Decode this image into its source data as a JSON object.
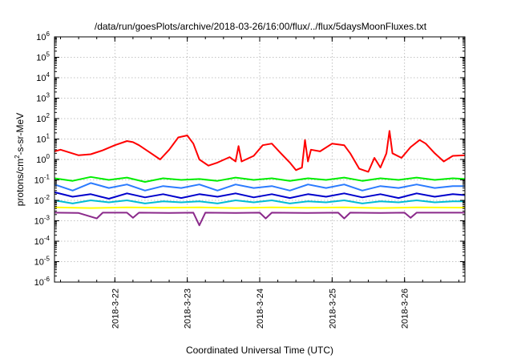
{
  "chart_data": {
    "type": "line",
    "title": "/data/run/goesPlots/archive/2018-03-26/16:00/flux/../flux/5daysMoonFluxes.txt",
    "xlabel": "Coordinated Universal Time (UTC)",
    "ylabel": {
      "prefix": "protons/cm",
      "sup": "2",
      "suffix": "-s-sr-MeV"
    },
    "x_range": [
      "2018-03-21T04:00",
      "2018-03-26T20:00"
    ],
    "x_ticks": [
      "2018-3-22",
      "2018-3-23",
      "2018-3-24",
      "2018-3-25",
      "2018-3-26"
    ],
    "y_scale": "log",
    "ylim": [
      1e-06,
      1000000.0
    ],
    "y_ticks": [
      {
        "base": "10",
        "exp": "-6"
      },
      {
        "base": "10",
        "exp": "-5"
      },
      {
        "base": "10",
        "exp": "-4"
      },
      {
        "base": "10",
        "exp": "-3"
      },
      {
        "base": "10",
        "exp": "-2"
      },
      {
        "base": "10",
        "exp": "-1"
      },
      {
        "base": "10",
        "exp": "0"
      },
      {
        "base": "10",
        "exp": "1"
      },
      {
        "base": "10",
        "exp": "2"
      },
      {
        "base": "10",
        "exp": "3"
      },
      {
        "base": "10",
        "exp": "4"
      },
      {
        "base": "10",
        "exp": "5"
      },
      {
        "base": "10",
        "exp": "6"
      }
    ],
    "grid": true,
    "legend": "none",
    "series": [
      {
        "color": "#ff0000",
        "values": [
          [
            "2018-03-21T04:00",
            2.5
          ],
          [
            "2018-03-21T06:00",
            3.0
          ],
          [
            "2018-03-21T09:00",
            2.2
          ],
          [
            "2018-03-21T12:00",
            1.6
          ],
          [
            "2018-03-21T16:00",
            1.8
          ],
          [
            "2018-03-21T20:00",
            2.8
          ],
          [
            "2018-03-22T00:00",
            5.0
          ],
          [
            "2018-03-22T04:00",
            8.0
          ],
          [
            "2018-03-22T06:00",
            7.0
          ],
          [
            "2018-03-22T08:00",
            5.0
          ],
          [
            "2018-03-22T12:00",
            2.0
          ],
          [
            "2018-03-22T15:00",
            1.0
          ],
          [
            "2018-03-22T18:00",
            3.0
          ],
          [
            "2018-03-22T21:00",
            12.0
          ],
          [
            "2018-03-23T00:00",
            15.0
          ],
          [
            "2018-03-23T02:00",
            6.0
          ],
          [
            "2018-03-23T04:00",
            1.0
          ],
          [
            "2018-03-23T07:00",
            0.5
          ],
          [
            "2018-03-23T10:00",
            0.7
          ],
          [
            "2018-03-23T14:00",
            1.3
          ],
          [
            "2018-03-23T16:00",
            0.8
          ],
          [
            "2018-03-23T17:00",
            4.5
          ],
          [
            "2018-03-23T18:00",
            0.8
          ],
          [
            "2018-03-23T22:00",
            1.5
          ],
          [
            "2018-03-24T01:00",
            5.0
          ],
          [
            "2018-03-24T04:00",
            6.0
          ],
          [
            "2018-03-24T07:00",
            2.0
          ],
          [
            "2018-03-24T10:00",
            0.7
          ],
          [
            "2018-03-24T12:00",
            0.3
          ],
          [
            "2018-03-24T14:00",
            0.4
          ],
          [
            "2018-03-24T15:00",
            9.0
          ],
          [
            "2018-03-24T16:00",
            0.8
          ],
          [
            "2018-03-24T17:00",
            3.0
          ],
          [
            "2018-03-24T20:00",
            2.5
          ],
          [
            "2018-03-25T00:00",
            6.0
          ],
          [
            "2018-03-25T04:00",
            5.0
          ],
          [
            "2018-03-25T06:00",
            2.0
          ],
          [
            "2018-03-25T09:00",
            0.35
          ],
          [
            "2018-03-25T12:00",
            0.25
          ],
          [
            "2018-03-25T14:00",
            1.2
          ],
          [
            "2018-03-25T16:00",
            0.4
          ],
          [
            "2018-03-25T18:00",
            2.0
          ],
          [
            "2018-03-25T19:00",
            25.0
          ],
          [
            "2018-03-25T20:00",
            2.0
          ],
          [
            "2018-03-25T23:00",
            1.2
          ],
          [
            "2018-03-26T02:00",
            4.0
          ],
          [
            "2018-03-26T05:00",
            9.0
          ],
          [
            "2018-03-26T07:00",
            6.0
          ],
          [
            "2018-03-26T10:00",
            2.0
          ],
          [
            "2018-03-26T13:00",
            0.8
          ],
          [
            "2018-03-26T16:00",
            1.5
          ],
          [
            "2018-03-26T20:00",
            1.6
          ]
        ]
      },
      {
        "color": "#00ee00",
        "values": [
          [
            "2018-03-21T04:00",
            0.12
          ],
          [
            "2018-03-21T10:00",
            0.09
          ],
          [
            "2018-03-21T16:00",
            0.14
          ],
          [
            "2018-03-21T22:00",
            0.1
          ],
          [
            "2018-03-22T04:00",
            0.13
          ],
          [
            "2018-03-22T10:00",
            0.08
          ],
          [
            "2018-03-22T16:00",
            0.12
          ],
          [
            "2018-03-22T22:00",
            0.1
          ],
          [
            "2018-03-23T04:00",
            0.11
          ],
          [
            "2018-03-23T10:00",
            0.09
          ],
          [
            "2018-03-23T16:00",
            0.13
          ],
          [
            "2018-03-23T22:00",
            0.1
          ],
          [
            "2018-03-24T04:00",
            0.12
          ],
          [
            "2018-03-24T10:00",
            0.09
          ],
          [
            "2018-03-24T16:00",
            0.12
          ],
          [
            "2018-03-24T22:00",
            0.1
          ],
          [
            "2018-03-25T04:00",
            0.13
          ],
          [
            "2018-03-25T10:00",
            0.09
          ],
          [
            "2018-03-25T16:00",
            0.12
          ],
          [
            "2018-03-25T22:00",
            0.1
          ],
          [
            "2018-03-26T04:00",
            0.13
          ],
          [
            "2018-03-26T10:00",
            0.1
          ],
          [
            "2018-03-26T16:00",
            0.12
          ],
          [
            "2018-03-26T20:00",
            0.11
          ]
        ]
      },
      {
        "color": "#2b7bff",
        "values": [
          [
            "2018-03-21T04:00",
            0.06
          ],
          [
            "2018-03-21T10:00",
            0.03
          ],
          [
            "2018-03-21T16:00",
            0.07
          ],
          [
            "2018-03-21T22:00",
            0.04
          ],
          [
            "2018-03-22T04:00",
            0.06
          ],
          [
            "2018-03-22T10:00",
            0.03
          ],
          [
            "2018-03-22T16:00",
            0.05
          ],
          [
            "2018-03-22T22:00",
            0.04
          ],
          [
            "2018-03-23T04:00",
            0.06
          ],
          [
            "2018-03-23T10:00",
            0.03
          ],
          [
            "2018-03-23T16:00",
            0.06
          ],
          [
            "2018-03-23T22:00",
            0.04
          ],
          [
            "2018-03-24T04:00",
            0.05
          ],
          [
            "2018-03-24T10:00",
            0.03
          ],
          [
            "2018-03-24T16:00",
            0.06
          ],
          [
            "2018-03-24T22:00",
            0.04
          ],
          [
            "2018-03-25T04:00",
            0.06
          ],
          [
            "2018-03-25T10:00",
            0.03
          ],
          [
            "2018-03-25T16:00",
            0.05
          ],
          [
            "2018-03-25T22:00",
            0.04
          ],
          [
            "2018-03-26T04:00",
            0.06
          ],
          [
            "2018-03-26T10:00",
            0.04
          ],
          [
            "2018-03-26T16:00",
            0.05
          ],
          [
            "2018-03-26T20:00",
            0.05
          ]
        ]
      },
      {
        "color": "#0000cc",
        "values": [
          [
            "2018-03-21T04:00",
            0.025
          ],
          [
            "2018-03-21T10:00",
            0.015
          ],
          [
            "2018-03-21T16:00",
            0.02
          ],
          [
            "2018-03-21T22:00",
            0.012
          ],
          [
            "2018-03-22T04:00",
            0.022
          ],
          [
            "2018-03-22T10:00",
            0.014
          ],
          [
            "2018-03-22T16:00",
            0.02
          ],
          [
            "2018-03-22T22:00",
            0.013
          ],
          [
            "2018-03-23T04:00",
            0.02
          ],
          [
            "2018-03-23T10:00",
            0.015
          ],
          [
            "2018-03-23T16:00",
            0.022
          ],
          [
            "2018-03-23T22:00",
            0.014
          ],
          [
            "2018-03-24T04:00",
            0.02
          ],
          [
            "2018-03-24T10:00",
            0.013
          ],
          [
            "2018-03-24T16:00",
            0.02
          ],
          [
            "2018-03-24T22:00",
            0.015
          ],
          [
            "2018-03-25T04:00",
            0.022
          ],
          [
            "2018-03-25T10:00",
            0.014
          ],
          [
            "2018-03-25T16:00",
            0.02
          ],
          [
            "2018-03-25T22:00",
            0.013
          ],
          [
            "2018-03-26T04:00",
            0.022
          ],
          [
            "2018-03-26T10:00",
            0.015
          ],
          [
            "2018-03-26T16:00",
            0.02
          ],
          [
            "2018-03-26T20:00",
            0.018
          ]
        ]
      },
      {
        "color": "#00bcd4",
        "values": [
          [
            "2018-03-21T04:00",
            0.01
          ],
          [
            "2018-03-21T10:00",
            0.007
          ],
          [
            "2018-03-21T16:00",
            0.01
          ],
          [
            "2018-03-21T22:00",
            0.008
          ],
          [
            "2018-03-22T04:00",
            0.01
          ],
          [
            "2018-03-22T10:00",
            0.007
          ],
          [
            "2018-03-22T16:00",
            0.009
          ],
          [
            "2018-03-22T22:00",
            0.008
          ],
          [
            "2018-03-23T04:00",
            0.009
          ],
          [
            "2018-03-23T10:00",
            0.007
          ],
          [
            "2018-03-23T16:00",
            0.01
          ],
          [
            "2018-03-23T22:00",
            0.008
          ],
          [
            "2018-03-24T04:00",
            0.01
          ],
          [
            "2018-03-24T10:00",
            0.007
          ],
          [
            "2018-03-24T16:00",
            0.009
          ],
          [
            "2018-03-24T22:00",
            0.008
          ],
          [
            "2018-03-25T04:00",
            0.01
          ],
          [
            "2018-03-25T10:00",
            0.007
          ],
          [
            "2018-03-25T16:00",
            0.009
          ],
          [
            "2018-03-25T22:00",
            0.008
          ],
          [
            "2018-03-26T04:00",
            0.01
          ],
          [
            "2018-03-26T10:00",
            0.008
          ],
          [
            "2018-03-26T16:00",
            0.009
          ],
          [
            "2018-03-26T20:00",
            0.009
          ]
        ]
      },
      {
        "color": "#ffff00",
        "values": [
          [
            "2018-03-21T04:00",
            0.0045
          ],
          [
            "2018-03-21T16:00",
            0.0042
          ],
          [
            "2018-03-22T04:00",
            0.0045
          ],
          [
            "2018-03-22T16:00",
            0.0043
          ],
          [
            "2018-03-23T04:00",
            0.0045
          ],
          [
            "2018-03-23T16:00",
            0.0042
          ],
          [
            "2018-03-24T04:00",
            0.0045
          ],
          [
            "2018-03-24T16:00",
            0.0043
          ],
          [
            "2018-03-25T04:00",
            0.0045
          ],
          [
            "2018-03-25T16:00",
            0.0042
          ],
          [
            "2018-03-26T04:00",
            0.0045
          ],
          [
            "2018-03-26T20:00",
            0.0044
          ]
        ]
      },
      {
        "color": "#8b2a8b",
        "values": [
          [
            "2018-03-21T04:00",
            0.0025
          ],
          [
            "2018-03-21T12:00",
            0.0024
          ],
          [
            "2018-03-21T18:00",
            0.0013
          ],
          [
            "2018-03-21T20:00",
            0.0025
          ],
          [
            "2018-03-22T04:00",
            0.0025
          ],
          [
            "2018-03-22T06:00",
            0.0014
          ],
          [
            "2018-03-22T08:00",
            0.0025
          ],
          [
            "2018-03-22T18:00",
            0.0024
          ],
          [
            "2018-03-23T02:00",
            0.0025
          ],
          [
            "2018-03-23T04:00",
            0.0006
          ],
          [
            "2018-03-23T06:00",
            0.0025
          ],
          [
            "2018-03-23T16:00",
            0.0024
          ],
          [
            "2018-03-24T00:00",
            0.0025
          ],
          [
            "2018-03-24T02:00",
            0.0013
          ],
          [
            "2018-03-24T04:00",
            0.0025
          ],
          [
            "2018-03-24T16:00",
            0.0024
          ],
          [
            "2018-03-25T02:00",
            0.0025
          ],
          [
            "2018-03-25T04:00",
            0.0013
          ],
          [
            "2018-03-25T06:00",
            0.0025
          ],
          [
            "2018-03-25T16:00",
            0.0024
          ],
          [
            "2018-03-26T00:00",
            0.0025
          ],
          [
            "2018-03-26T02:00",
            0.0014
          ],
          [
            "2018-03-26T04:00",
            0.0025
          ],
          [
            "2018-03-26T20:00",
            0.0025
          ]
        ]
      }
    ]
  }
}
